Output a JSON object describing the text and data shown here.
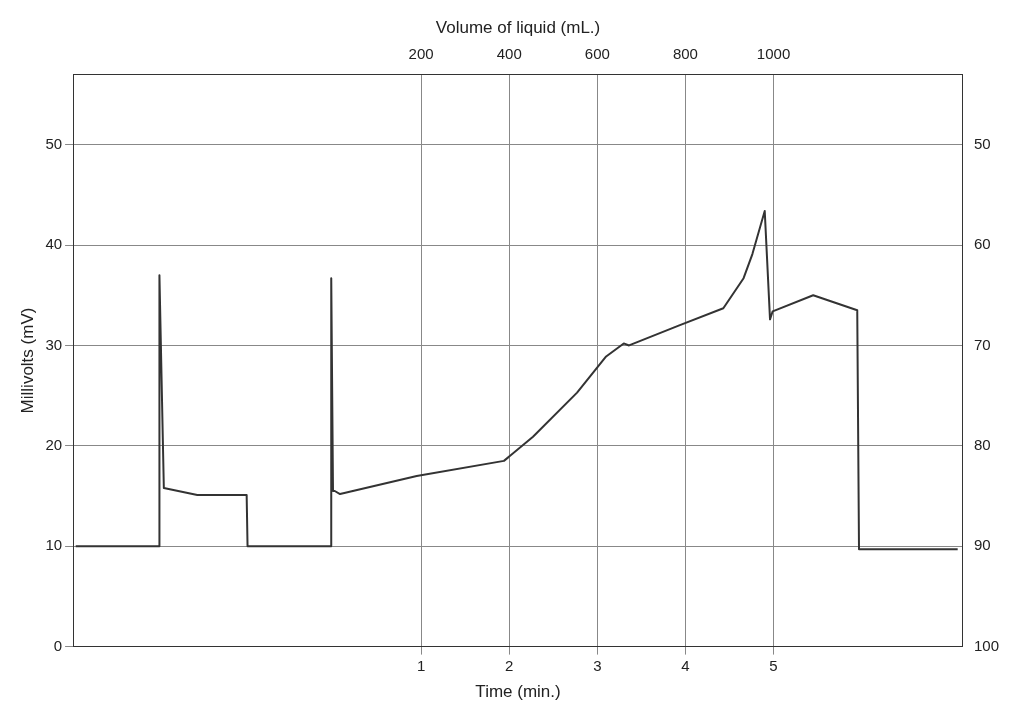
{
  "chart_data": {
    "type": "line",
    "xlabel": "Time (min.)",
    "x2label": "Volume of liquid (mL.)",
    "ylabel": "Millivolts (mV)",
    "xlim": [
      -2.95,
      7.15
    ],
    "xticks": [
      1,
      2,
      3,
      4,
      5
    ],
    "x2lim": [
      -590,
      1430
    ],
    "x2ticks": [
      200,
      400,
      600,
      800,
      1000
    ],
    "ylim": [
      0,
      57
    ],
    "yticks": [
      0,
      10,
      20,
      30,
      40,
      50
    ],
    "y2lim": [
      100,
      43
    ],
    "y2ticks": [
      50,
      60,
      70,
      80,
      90,
      100
    ],
    "grid": true,
    "marker": "none",
    "line_style": "solid",
    "series": [
      {
        "color": "#333333",
        "x": [
          -2.92,
          -1.97,
          -1.97,
          -1.92,
          -1.54,
          -0.98,
          -0.97,
          -0.02,
          -0.02,
          0,
          0.02,
          0.08,
          0.95,
          1.94,
          2.27,
          2.77,
          3.1,
          3.3,
          3.36,
          3.93,
          4.43,
          4.66,
          4.76,
          4.9,
          4.96,
          4.99,
          5.45,
          5.95,
          5.97,
          7.09
        ],
        "values": [
          10,
          10,
          37,
          15.8,
          15.1,
          15.1,
          10,
          10,
          36.7,
          15.5,
          15.5,
          15.2,
          17,
          18.5,
          20.9,
          25.3,
          28.9,
          30.2,
          30,
          32,
          33.7,
          36.7,
          39.1,
          43.4,
          32.6,
          33.4,
          35,
          33.5,
          9.7,
          9.7
        ]
      }
    ]
  }
}
